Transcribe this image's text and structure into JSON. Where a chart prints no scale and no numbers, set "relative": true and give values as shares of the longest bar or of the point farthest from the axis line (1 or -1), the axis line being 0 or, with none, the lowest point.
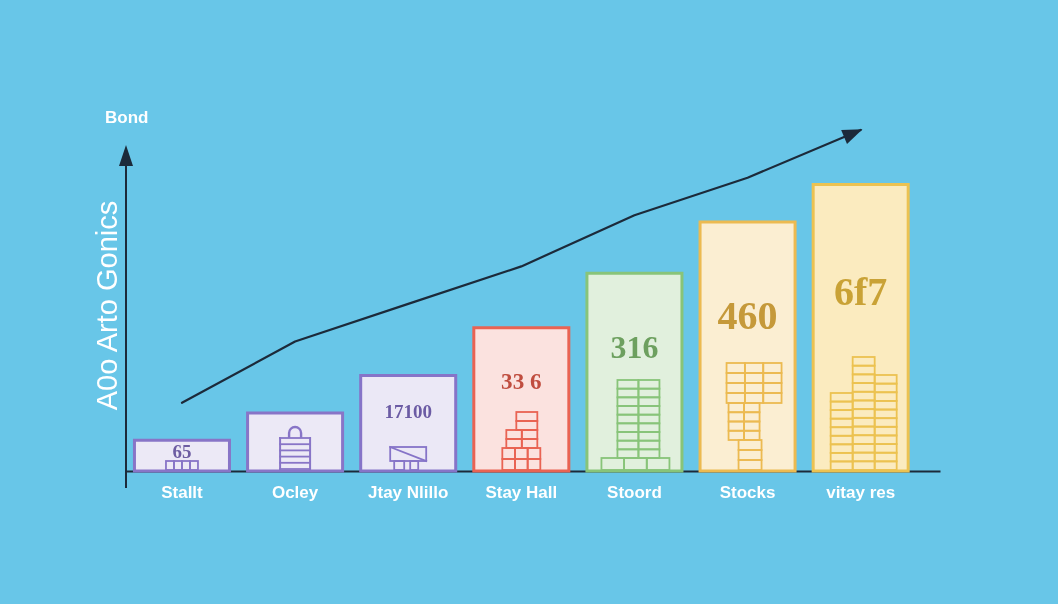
{
  "chart_data": {
    "type": "bar",
    "title": "Bond",
    "ylabel": "A0o Arto Gonics",
    "relative": true,
    "categories": [
      "Stallt",
      "Ocley",
      "Jtay Nlillo",
      "Stay Hall",
      "Stoord",
      "Stocks",
      "vitay res"
    ],
    "series": [
      {
        "colors": [
          "#ece9f6",
          "#ece9f6",
          "#ebe8f6",
          "#fbe2df",
          "#e1f0dd",
          "#fbeed2",
          "#fbebbf"
        ],
        "values": [
          0.09,
          0.17,
          0.28,
          0.42,
          0.58,
          0.73,
          0.84
        ]
      },
      {
        "type": "line",
        "color": "#1c2a3a",
        "values": [
          0.2,
          0.38,
          0.49,
          0.6,
          0.75,
          0.86,
          1
        ]
      }
    ],
    "annotations": [
      {
        "text": "65",
        "x": "Stallt",
        "y": 0.09
      },
      {
        "text": "17100",
        "x": "Jtay Nlillo",
        "y": 0.28
      },
      {
        "text": "33 6",
        "x": "Stay Hall",
        "y": 0.42
      },
      {
        "text": "316",
        "x": "Stoord",
        "y": 0.58
      },
      {
        "text": "460",
        "x": "Stocks",
        "y": 0.73
      },
      {
        "text": "6f7",
        "x": "vitay res",
        "y": 0.84
      }
    ]
  }
}
